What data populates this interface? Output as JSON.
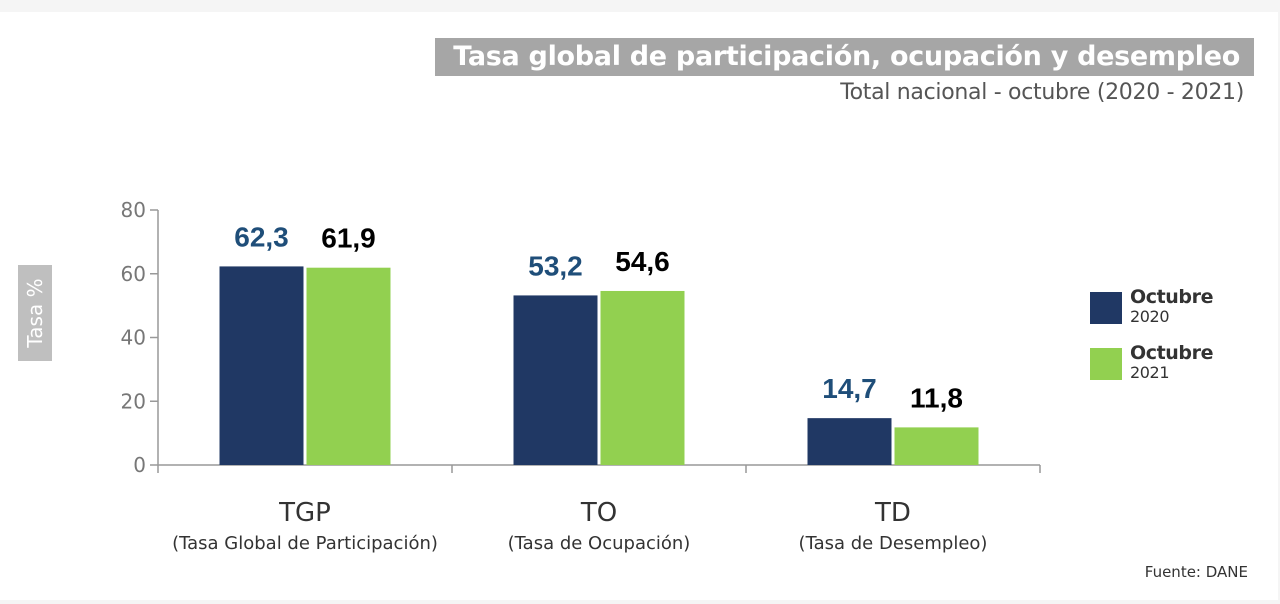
{
  "title": "Tasa global de participación, ocupación y desempleo",
  "subtitle": "Total nacional - octubre (2020 - 2021)",
  "source": "Fuente: DANE",
  "colors": {
    "series_2020": "#203864",
    "series_2021": "#92d050",
    "label_2020": "#1f4e79",
    "label_2021": "#000000",
    "axis": "#999999"
  },
  "chart_data": {
    "type": "bar",
    "ylabel": "Tasa %",
    "ylim": [
      0,
      80
    ],
    "yticks": [
      "0",
      "20",
      "40",
      "60",
      "80"
    ],
    "categories": [
      "TGP",
      "TO",
      "TD"
    ],
    "category_descriptions": [
      "(Tasa Global de Participación)",
      "(Tasa de Ocupación)",
      "(Tasa de Desempleo)"
    ],
    "series": [
      {
        "name": "Octubre 2020",
        "values": [
          62.3,
          53.2,
          14.7
        ],
        "labels": [
          "62,3",
          "53,2",
          "14,7"
        ]
      },
      {
        "name": "Octubre 2021",
        "values": [
          61.9,
          54.6,
          11.8
        ],
        "labels": [
          "61,9",
          "54,6",
          "11,8"
        ]
      }
    ],
    "legend_position": "right",
    "legend": [
      {
        "line1": "Octubre",
        "line2": "2020"
      },
      {
        "line1": "Octubre",
        "line2": "2021"
      }
    ]
  }
}
